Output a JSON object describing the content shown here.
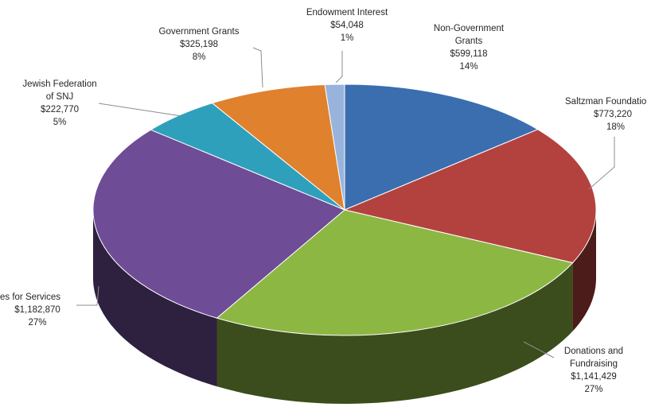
{
  "chart_data": {
    "type": "pie",
    "style": "3d",
    "slices": [
      {
        "name": "Non-Government Grants",
        "value": "$599,118",
        "percent": "14%",
        "amount": 599118,
        "color": "#3A6EAF"
      },
      {
        "name": "Saltzman Foundation",
        "value": "$773,220",
        "percent": "18%",
        "amount": 773220,
        "color": "#B3423E"
      },
      {
        "name": "Donations and Fundraising",
        "value": "$1,141,429",
        "percent": "27%",
        "amount": 1141429,
        "color": "#8DB743"
      },
      {
        "name": "Fees for Services",
        "value": "$1,182,870",
        "percent": "27%",
        "amount": 1182870,
        "color": "#6E4C96"
      },
      {
        "name": "Jewish Federation of SNJ",
        "value": "$222,770",
        "percent": "5%",
        "amount": 222770,
        "color": "#2FA0BB"
      },
      {
        "name": "Government Grants",
        "value": "$325,198",
        "percent": "8%",
        "amount": 325198,
        "color": "#E0812E"
      },
      {
        "name": "Endowment Interest",
        "value": "$54,048",
        "percent": "1%",
        "amount": 54048,
        "color": "#98B4DD"
      }
    ],
    "labels": {
      "nongov": [
        "Non-Government",
        "Grants",
        "$599,118",
        "14%"
      ],
      "saltzman": [
        "Saltzman Foundatio",
        "$773,220",
        "18%"
      ],
      "donations": [
        "Donations and",
        "Fundraising",
        "$1,141,429",
        "27%"
      ],
      "fees": [
        "es for Services",
        "$1,182,870",
        "27%"
      ],
      "jewish": [
        "Jewish Federation",
        "of SNJ",
        "$222,770",
        "5%"
      ],
      "govgrants": [
        "Government Grants",
        "$325,198",
        "8%"
      ],
      "endowment": [
        "Endowment Interest",
        "$54,048",
        "1%"
      ]
    }
  }
}
